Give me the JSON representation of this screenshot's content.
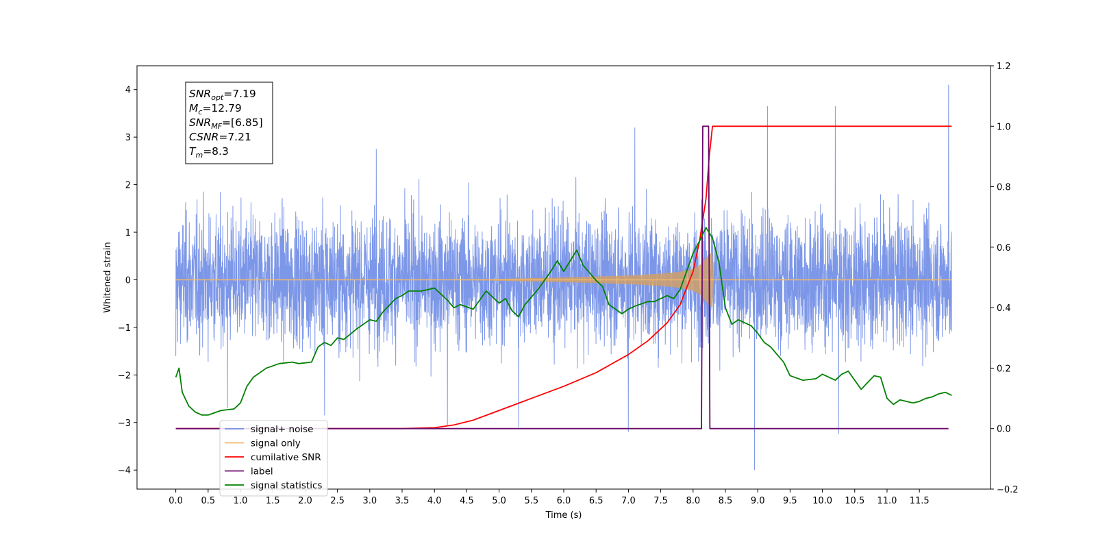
{
  "chart_data": {
    "type": "line",
    "xlabel": "Time (s)",
    "ylabel": "Whitened strain",
    "xlim": [
      -0.6,
      12.6
    ],
    "ylim": [
      -4.4,
      4.5
    ],
    "y2lim": [
      -0.2,
      1.2
    ],
    "x_ticks": [
      "0.0",
      "0.5",
      "1.0",
      "1.5",
      "2.0",
      "2.5",
      "3.0",
      "3.5",
      "4.0",
      "4.5",
      "5.0",
      "5.5",
      "6.0",
      "6.5",
      "7.0",
      "7.5",
      "8.0",
      "8.5",
      "9.0",
      "9.5",
      "10.0",
      "10.5",
      "11.0",
      "11.5"
    ],
    "y_ticks": [
      "4",
      "3",
      "2",
      "1",
      "0",
      "−1",
      "−2",
      "−3",
      "−4"
    ],
    "y2_ticks": [
      "1.2",
      "1.0",
      "0.8",
      "0.6",
      "0.4",
      "0.2",
      "0.0",
      "−0.2"
    ],
    "grid": false,
    "legend_position": "lower-left",
    "annotation": {
      "lines": [
        {
          "label": "SNR",
          "sub": "opt",
          "value": "=7.19"
        },
        {
          "label": "M",
          "sub": "c",
          "value": "=12.79"
        },
        {
          "label": "SNR",
          "sub": "MF",
          "value": "=[6.85]"
        },
        {
          "label": "CSNR",
          "sub": "",
          "value": "=7.21"
        },
        {
          "label": "T",
          "sub": "m",
          "value": "=8.3"
        }
      ]
    },
    "noise_extremes": [
      {
        "x": 0.0,
        "y": 1.85
      },
      {
        "x": 0.0,
        "y": -1.6
      },
      {
        "x": 0.8,
        "y": -2.7
      },
      {
        "x": 2.3,
        "y": -2.85
      },
      {
        "x": 3.1,
        "y": 2.75
      },
      {
        "x": 4.2,
        "y": -3.05
      },
      {
        "x": 5.3,
        "y": -3.1
      },
      {
        "x": 7.0,
        "y": -3.2
      },
      {
        "x": 7.1,
        "y": 3.2
      },
      {
        "x": 8.95,
        "y": -4.0
      },
      {
        "x": 9.15,
        "y": 3.65
      },
      {
        "x": 10.2,
        "y": 3.65
      },
      {
        "x": 10.25,
        "y": -3.25
      },
      {
        "x": 11.95,
        "y": 4.1
      }
    ],
    "series": [
      {
        "name": "signal+ noise",
        "color": "#6f8ce6",
        "axis": "left",
        "description_points": {
          "x": [
            0.0,
            12.0
          ],
          "y": [
            0.0,
            0.0
          ]
        }
      },
      {
        "name": "signal only",
        "color": "#f0b86a",
        "axis": "left",
        "envelope_x": [
          0.0,
          4.0,
          5.0,
          6.0,
          6.5,
          7.0,
          7.5,
          7.8,
          8.0,
          8.1,
          8.2,
          8.3,
          8.31,
          12.0
        ],
        "envelope_y": [
          0.0,
          0.0,
          0.02,
          0.05,
          0.07,
          0.09,
          0.13,
          0.17,
          0.23,
          0.3,
          0.45,
          0.6,
          0.0,
          0.0
        ]
      },
      {
        "name": "cumilative SNR",
        "color": "#ff0000",
        "axis": "right",
        "x": [
          0.0,
          3.5,
          4.0,
          4.3,
          4.6,
          5.0,
          5.5,
          6.0,
          6.5,
          7.0,
          7.3,
          7.6,
          7.8,
          8.0,
          8.1,
          8.2,
          8.25,
          8.3,
          12.0
        ],
        "y": [
          0.0,
          0.0,
          0.003,
          0.012,
          0.028,
          0.06,
          0.1,
          0.14,
          0.185,
          0.245,
          0.29,
          0.35,
          0.41,
          0.52,
          0.62,
          0.76,
          0.9,
          1.0,
          1.0
        ]
      },
      {
        "name": "label",
        "color": "#6a0a6a",
        "axis": "right",
        "x": [
          0.0,
          8.13,
          8.15,
          8.24,
          8.26,
          8.32,
          8.34,
          11.95
        ],
        "y": [
          0.0,
          0.0,
          1.0,
          1.0,
          0.0,
          0.0,
          0.0,
          0.0
        ]
      },
      {
        "name": "signal statistics",
        "color": "#008000",
        "axis": "right",
        "x": [
          0.0,
          0.05,
          0.1,
          0.2,
          0.3,
          0.4,
          0.5,
          0.7,
          0.9,
          1.0,
          1.1,
          1.2,
          1.4,
          1.6,
          1.8,
          1.9,
          2.1,
          2.2,
          2.3,
          2.4,
          2.5,
          2.6,
          2.8,
          3.0,
          3.1,
          3.2,
          3.4,
          3.5,
          3.6,
          3.8,
          4.0,
          4.2,
          4.3,
          4.4,
          4.6,
          4.8,
          5.0,
          5.1,
          5.2,
          5.3,
          5.4,
          5.6,
          5.8,
          5.9,
          6.0,
          6.1,
          6.2,
          6.3,
          6.5,
          6.6,
          6.7,
          6.9,
          7.0,
          7.1,
          7.3,
          7.4,
          7.6,
          7.7,
          7.8,
          7.9,
          8.0,
          8.1,
          8.2,
          8.3,
          8.4,
          8.5,
          8.6,
          8.7,
          8.9,
          9.0,
          9.1,
          9.2,
          9.4,
          9.5,
          9.7,
          9.9,
          10.0,
          10.2,
          10.3,
          10.4,
          10.6,
          10.8,
          10.9,
          11.0,
          11.1,
          11.2,
          11.4,
          11.5,
          11.6,
          11.7,
          11.8,
          11.9,
          12.0
        ],
        "y": [
          0.17,
          0.2,
          0.12,
          0.075,
          0.055,
          0.045,
          0.045,
          0.06,
          0.065,
          0.085,
          0.14,
          0.17,
          0.2,
          0.215,
          0.22,
          0.215,
          0.22,
          0.27,
          0.285,
          0.275,
          0.3,
          0.295,
          0.33,
          0.36,
          0.355,
          0.385,
          0.43,
          0.44,
          0.455,
          0.455,
          0.465,
          0.425,
          0.4,
          0.41,
          0.395,
          0.455,
          0.415,
          0.43,
          0.39,
          0.37,
          0.41,
          0.46,
          0.52,
          0.555,
          0.52,
          0.555,
          0.59,
          0.54,
          0.49,
          0.47,
          0.41,
          0.38,
          0.395,
          0.405,
          0.42,
          0.42,
          0.44,
          0.43,
          0.46,
          0.52,
          0.58,
          0.62,
          0.665,
          0.63,
          0.55,
          0.4,
          0.345,
          0.36,
          0.34,
          0.315,
          0.285,
          0.27,
          0.22,
          0.175,
          0.16,
          0.165,
          0.18,
          0.16,
          0.18,
          0.19,
          0.13,
          0.175,
          0.17,
          0.1,
          0.08,
          0.095,
          0.085,
          0.09,
          0.1,
          0.105,
          0.115,
          0.12,
          0.11
        ]
      }
    ],
    "legend": [
      {
        "label": "signal+ noise",
        "color": "#6f8ce6"
      },
      {
        "label": "signal only",
        "color": "#f0b86a"
      },
      {
        "label": "cumilative SNR",
        "color": "#ff0000"
      },
      {
        "label": "label",
        "color": "#6a0a6a"
      },
      {
        "label": "signal statistics",
        "color": "#008000"
      }
    ]
  }
}
